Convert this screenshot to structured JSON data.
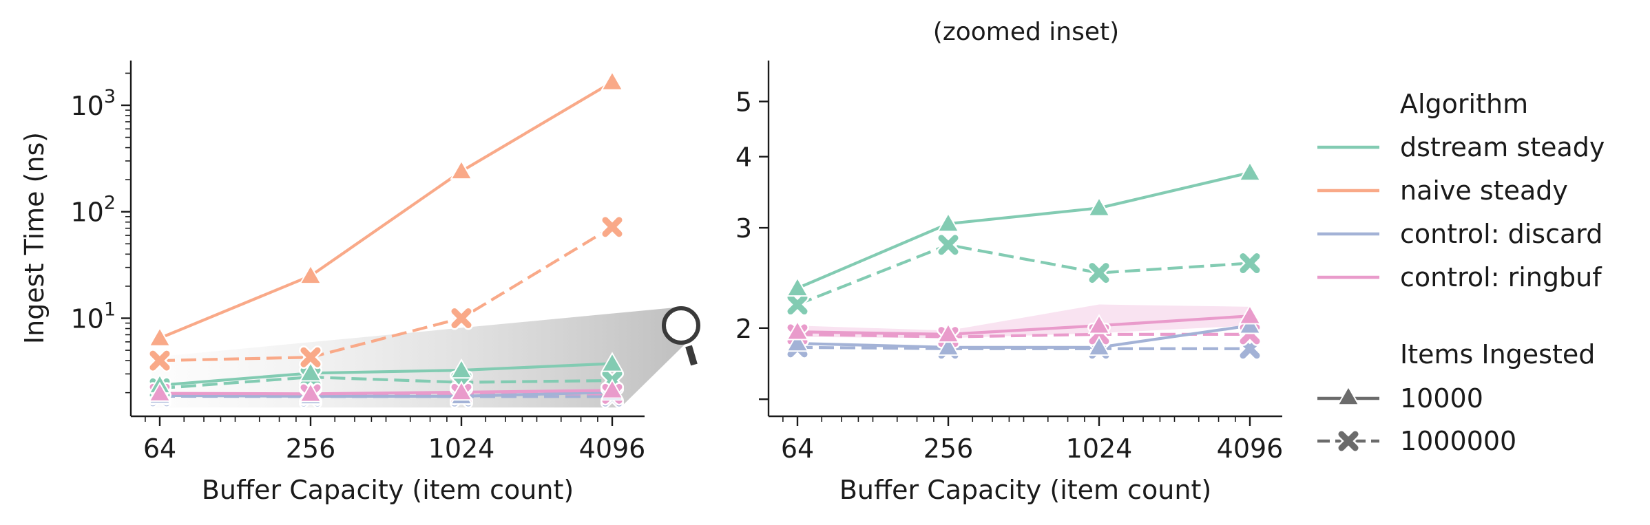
{
  "chart_data": [
    {
      "type": "line",
      "title": "",
      "xlabel": "Buffer Capacity (item count)",
      "ylabel": "Ingest Time (ns)",
      "x": [
        64,
        256,
        1024,
        4096
      ],
      "xscale": "log2",
      "xticks": [
        {
          "value": 64,
          "label": "64"
        },
        {
          "value": 256,
          "label": "256"
        },
        {
          "value": 1024,
          "label": "1024"
        },
        {
          "value": 4096,
          "label": "4096"
        }
      ],
      "yscale": "log10",
      "ylim": [
        1.2,
        2200
      ],
      "yticks": [
        {
          "value": 10,
          "base": "10",
          "exp": "1"
        },
        {
          "value": 100,
          "base": "10",
          "exp": "2"
        },
        {
          "value": 1000,
          "base": "10",
          "exp": "3"
        }
      ],
      "grid": false,
      "series": [
        {
          "name": "dstream steady",
          "items": "10000",
          "color": "#82cbb2",
          "values": [
            2.35,
            3.05,
            3.25,
            3.75
          ]
        },
        {
          "name": "dstream steady",
          "items": "1000000",
          "color": "#82cbb2",
          "values": [
            2.2,
            2.8,
            2.5,
            2.6
          ]
        },
        {
          "name": "naive steady",
          "items": "10000",
          "color": "#f9a988",
          "values": [
            6.5,
            25,
            240,
            1650
          ]
        },
        {
          "name": "naive steady",
          "items": "1000000",
          "color": "#f9a988",
          "values": [
            4.0,
            4.3,
            10,
            72
          ]
        },
        {
          "name": "control: discard",
          "items": "10000",
          "color": "#a3b2d6",
          "values": [
            1.88,
            1.85,
            1.85,
            2.02
          ]
        },
        {
          "name": "control: discard",
          "items": "1000000",
          "color": "#a3b2d6",
          "values": [
            1.85,
            1.84,
            1.84,
            1.84
          ]
        },
        {
          "name": "control: ringbuf",
          "items": "10000",
          "color": "#e99bcb",
          "values": [
            1.97,
            1.95,
            2.02,
            2.1
          ]
        },
        {
          "name": "control: ringbuf",
          "items": "1000000",
          "color": "#e99bcb",
          "values": [
            1.95,
            1.93,
            1.95,
            1.95
          ]
        }
      ]
    },
    {
      "type": "line",
      "title": "(zoomed inset)",
      "xlabel": "Buffer Capacity (item count)",
      "ylabel": "",
      "x": [
        64,
        256,
        1024,
        4096
      ],
      "xscale": "log2",
      "xticks": [
        {
          "value": 64,
          "label": "64"
        },
        {
          "value": 256,
          "label": "256"
        },
        {
          "value": 1024,
          "label": "1024"
        },
        {
          "value": 4096,
          "label": "4096"
        }
      ],
      "yscale": "log10",
      "ylim": [
        1.4,
        5.9
      ],
      "yticks": [
        {
          "value": 2,
          "label": "2"
        },
        {
          "value": 3,
          "label": "3"
        },
        {
          "value": 4,
          "label": "4"
        },
        {
          "value": 5,
          "label": "5"
        }
      ],
      "grid": false,
      "series": [
        {
          "name": "dstream steady",
          "items": "10000",
          "color": "#82cbb2",
          "values": [
            2.35,
            3.05,
            3.25,
            3.75
          ]
        },
        {
          "name": "dstream steady",
          "items": "1000000",
          "color": "#82cbb2",
          "values": [
            2.2,
            2.8,
            2.5,
            2.6
          ]
        },
        {
          "name": "control: discard",
          "items": "10000",
          "color": "#a3b2d6",
          "values": [
            1.88,
            1.85,
            1.85,
            2.02
          ]
        },
        {
          "name": "control: discard",
          "items": "1000000",
          "color": "#a3b2d6",
          "values": [
            1.85,
            1.84,
            1.84,
            1.84
          ]
        },
        {
          "name": "control: ringbuf",
          "items": "10000",
          "color": "#e99bcb",
          "values": [
            1.97,
            1.95,
            2.02,
            2.1
          ]
        },
        {
          "name": "control: ringbuf",
          "items": "1000000",
          "color": "#e99bcb",
          "values": [
            1.95,
            1.93,
            1.95,
            1.95
          ]
        }
      ],
      "bands": [
        {
          "name": "control: ringbuf",
          "items": "10000",
          "color": "#e99bcb",
          "low": [
            1.93,
            1.92,
            1.96,
            2.02
          ],
          "high": [
            2.02,
            1.98,
            2.2,
            2.18
          ]
        }
      ]
    }
  ],
  "legend": {
    "placement": "right",
    "algorithm_title": "Algorithm",
    "algorithms": [
      {
        "label": "dstream steady",
        "color": "#82cbb2"
      },
      {
        "label": "naive steady",
        "color": "#f9a988"
      },
      {
        "label": "control: discard",
        "color": "#a3b2d6"
      },
      {
        "label": "control: ringbuf",
        "color": "#e99bcb"
      }
    ],
    "items_title": "Items Ingested",
    "items": [
      {
        "label": "10000",
        "marker": "triangle",
        "dash": "solid",
        "color": "#6b6b6b"
      },
      {
        "label": "1000000",
        "marker": "x",
        "dash": "dashed",
        "color": "#6b6b6b"
      }
    ]
  },
  "zoom_icon": "magnifier-icon"
}
